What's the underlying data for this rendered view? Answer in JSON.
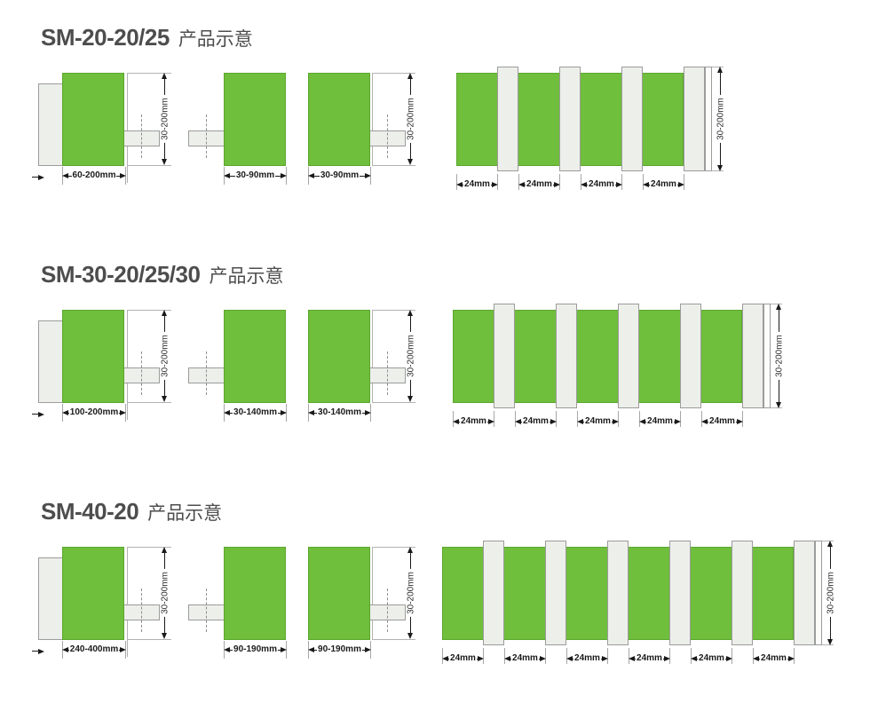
{
  "colors": {
    "green": "#6FBE3C",
    "green_border": "#5BA72E",
    "panel_gray": "#EDEFEA",
    "panel_border": "#9C9C9C",
    "dimension_text": "#1A1A1A",
    "title_text": "#4D4D4D"
  },
  "sections": [
    {
      "title": {
        "model": "SM-20-20/25",
        "suffix": "产品示意"
      },
      "front": {
        "width": "60-200mm",
        "height": "30-200mm"
      },
      "side_left": {
        "width": "30-90mm"
      },
      "side_right": {
        "width": "30-90mm",
        "height": "30-200mm"
      },
      "array": {
        "segments": 4,
        "segment_width": "24mm",
        "height": "30-200mm"
      }
    },
    {
      "title": {
        "model": "SM-30-20/25/30",
        "suffix": "产品示意"
      },
      "front": {
        "width": "100-200mm",
        "height": "30-200mm"
      },
      "side_left": {
        "width": "30-140mm"
      },
      "side_right": {
        "width": "30-140mm",
        "height": "30-200mm"
      },
      "array": {
        "segments": 5,
        "segment_width": "24mm",
        "height": "30-200mm"
      }
    },
    {
      "title": {
        "model": "SM-40-20",
        "suffix": "产品示意"
      },
      "front": {
        "width": "240-400mm",
        "height": "30-200mm"
      },
      "side_left": {
        "width": "90-190mm"
      },
      "side_right": {
        "width": "90-190mm",
        "height": "30-200mm"
      },
      "array": {
        "segments": 6,
        "segment_width": "24mm",
        "height": "30-200mm"
      }
    }
  ]
}
